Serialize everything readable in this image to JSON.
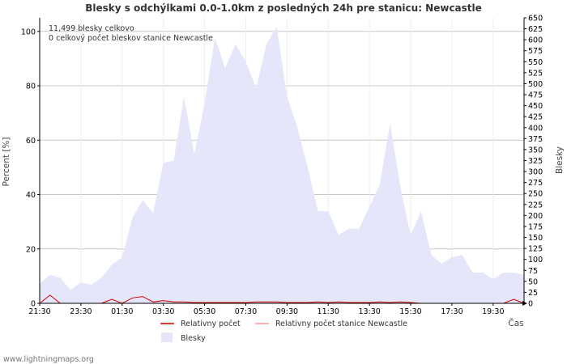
{
  "chart_data": {
    "type": "area",
    "title": "Blesky s odchýlkami 0.0-1.0km z posledných 24h pre stanicu: Newcastle",
    "ylabel_left": "Percent   [%]",
    "ylabel_right": "Blesky",
    "xlabel": "Čas",
    "ylim_left": [
      0,
      105
    ],
    "ylim_right": [
      0,
      650
    ],
    "y_ticks_left": [
      0,
      20,
      40,
      60,
      80,
      100
    ],
    "y_ticks_right": [
      0,
      25,
      50,
      75,
      100,
      125,
      150,
      175,
      200,
      225,
      250,
      275,
      300,
      325,
      350,
      375,
      400,
      425,
      450,
      475,
      500,
      525,
      550,
      575,
      600,
      625,
      650
    ],
    "x_tick_labels": [
      "21:30",
      "23:30",
      "01:30",
      "03:30",
      "05:30",
      "07:30",
      "09:30",
      "11:30",
      "13:30",
      "15:30",
      "17:30",
      "19:30"
    ],
    "annotations": [
      "11,499 blesky celkovo",
      "0 celkový počet bleskov stanice Newcastle"
    ],
    "series": [
      {
        "name": "Blesky",
        "axis": "right",
        "color": "#e6e6fa",
        "values": [
          45,
          65,
          58,
          30,
          48,
          42,
          58,
          88,
          105,
          195,
          235,
          205,
          320,
          325,
          470,
          340,
          455,
          605,
          535,
          590,
          550,
          490,
          590,
          630,
          470,
          400,
          310,
          210,
          210,
          155,
          170,
          170,
          220,
          270,
          410,
          265,
          155,
          210,
          110,
          90,
          105,
          110,
          70,
          70,
          55,
          70,
          70,
          65
        ]
      },
      {
        "name": "Relativny počet",
        "axis": "left",
        "color": "#cc0000",
        "values": [
          0,
          3,
          0,
          0,
          0,
          0,
          0,
          1.5,
          0,
          2,
          2.5,
          0.5,
          1,
          0.5,
          0.5,
          0.3,
          0.3,
          0.3,
          0.3,
          0.3,
          0.3,
          0.5,
          0.5,
          0.5,
          0.3,
          0.3,
          0.3,
          0.5,
          0.3,
          0.5,
          0.3,
          0.3,
          0.3,
          0.5,
          0.3,
          0.5,
          0.3,
          0,
          0,
          0,
          0,
          0,
          0,
          0,
          0,
          0,
          1.5,
          0
        ]
      },
      {
        "name": "Relativny počet stanice Newcastle",
        "axis": "left",
        "color": "#ff9999",
        "values": [
          0,
          0,
          0,
          0,
          0,
          0,
          0,
          0,
          0,
          0,
          0,
          0,
          0,
          0,
          0,
          0,
          0,
          0,
          0,
          0,
          0,
          0,
          0,
          0,
          0,
          0,
          0,
          0,
          0,
          0,
          0,
          0,
          0,
          0,
          0,
          0,
          0,
          0,
          0,
          0,
          0,
          0,
          0,
          0,
          0,
          0,
          0,
          0
        ]
      }
    ],
    "legend": [
      "Relativny počet",
      "Relativny počet stanice Newcastle",
      "Blesky"
    ],
    "footer": "www.lightningmaps.org"
  }
}
